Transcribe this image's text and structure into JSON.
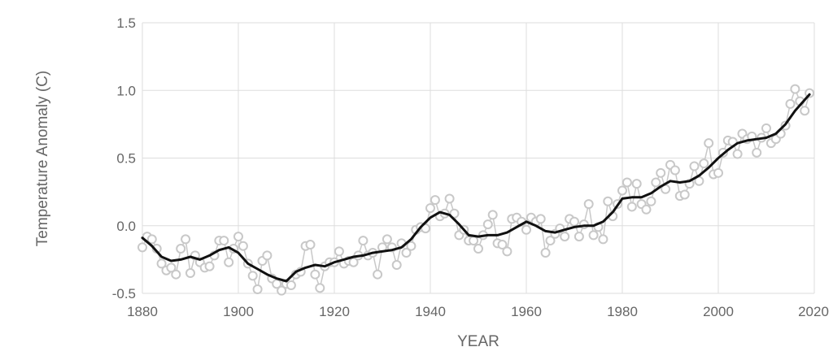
{
  "chart_data": {
    "type": "line",
    "title": "",
    "xlabel": "YEAR",
    "ylabel": "Temperature Anomaly (C)",
    "xlim": [
      1880,
      2020
    ],
    "ylim": [
      -0.5,
      1.5
    ],
    "xticks": [
      1880,
      1900,
      1920,
      1940,
      1960,
      1980,
      2000,
      2020
    ],
    "yticks": [
      -0.5,
      0.0,
      0.5,
      1.0,
      1.5
    ],
    "ytick_labels": [
      "-0.5",
      "0.0",
      "0.5",
      "1.0",
      "1.5"
    ],
    "grid": true,
    "colors": {
      "annual": "#c8c8c8",
      "smoothed": "#111111",
      "grid": "#dddddd"
    },
    "series": [
      {
        "role": "annual mean",
        "x": [
          1880,
          1881,
          1882,
          1883,
          1884,
          1885,
          1886,
          1887,
          1888,
          1889,
          1890,
          1891,
          1892,
          1893,
          1894,
          1895,
          1896,
          1897,
          1898,
          1899,
          1900,
          1901,
          1902,
          1903,
          1904,
          1905,
          1906,
          1907,
          1908,
          1909,
          1910,
          1911,
          1912,
          1913,
          1914,
          1915,
          1916,
          1917,
          1918,
          1919,
          1920,
          1921,
          1922,
          1923,
          1924,
          1925,
          1926,
          1927,
          1928,
          1929,
          1930,
          1931,
          1932,
          1933,
          1934,
          1935,
          1936,
          1937,
          1938,
          1939,
          1940,
          1941,
          1942,
          1943,
          1944,
          1945,
          1946,
          1947,
          1948,
          1949,
          1950,
          1951,
          1952,
          1953,
          1954,
          1955,
          1956,
          1957,
          1958,
          1959,
          1960,
          1961,
          1962,
          1963,
          1964,
          1965,
          1966,
          1967,
          1968,
          1969,
          1970,
          1971,
          1972,
          1973,
          1974,
          1975,
          1976,
          1977,
          1978,
          1979,
          1980,
          1981,
          1982,
          1983,
          1984,
          1985,
          1986,
          1987,
          1988,
          1989,
          1990,
          1991,
          1992,
          1993,
          1994,
          1995,
          1996,
          1997,
          1998,
          1999,
          2000,
          2001,
          2002,
          2003,
          2004,
          2005,
          2006,
          2007,
          2008,
          2009,
          2010,
          2011,
          2012,
          2013,
          2014,
          2015,
          2016,
          2017,
          2018,
          2019
        ],
        "y": [
          -0.16,
          -0.08,
          -0.1,
          -0.17,
          -0.28,
          -0.33,
          -0.31,
          -0.36,
          -0.17,
          -0.1,
          -0.35,
          -0.22,
          -0.27,
          -0.31,
          -0.3,
          -0.22,
          -0.11,
          -0.11,
          -0.27,
          -0.17,
          -0.08,
          -0.15,
          -0.28,
          -0.37,
          -0.47,
          -0.26,
          -0.22,
          -0.39,
          -0.43,
          -0.48,
          -0.43,
          -0.44,
          -0.36,
          -0.34,
          -0.15,
          -0.14,
          -0.36,
          -0.46,
          -0.3,
          -0.27,
          -0.27,
          -0.19,
          -0.28,
          -0.26,
          -0.27,
          -0.22,
          -0.11,
          -0.22,
          -0.2,
          -0.36,
          -0.16,
          -0.1,
          -0.16,
          -0.29,
          -0.13,
          -0.2,
          -0.15,
          -0.03,
          -0.01,
          -0.02,
          0.13,
          0.19,
          0.07,
          0.09,
          0.2,
          0.09,
          -0.07,
          -0.03,
          -0.11,
          -0.11,
          -0.17,
          -0.07,
          0.01,
          0.08,
          -0.13,
          -0.14,
          -0.19,
          0.05,
          0.06,
          0.03,
          -0.03,
          0.06,
          0.03,
          0.05,
          -0.2,
          -0.11,
          -0.06,
          -0.02,
          -0.08,
          0.05,
          0.03,
          -0.08,
          0.01,
          0.16,
          -0.07,
          -0.01,
          -0.1,
          0.18,
          0.07,
          0.16,
          0.26,
          0.32,
          0.14,
          0.31,
          0.16,
          0.12,
          0.18,
          0.32,
          0.39,
          0.27,
          0.45,
          0.41,
          0.22,
          0.23,
          0.31,
          0.44,
          0.33,
          0.46,
          0.61,
          0.38,
          0.39,
          0.54,
          0.63,
          0.62,
          0.53,
          0.68,
          0.64,
          0.66,
          0.54,
          0.65,
          0.72,
          0.61,
          0.64,
          0.68,
          0.74,
          0.9,
          1.01,
          0.92,
          0.85,
          0.98
        ]
      },
      {
        "role": "smoothed",
        "x": [
          1880,
          1882,
          1884,
          1886,
          1888,
          1890,
          1892,
          1894,
          1896,
          1898,
          1900,
          1902,
          1904,
          1906,
          1908,
          1910,
          1912,
          1914,
          1916,
          1918,
          1920,
          1922,
          1924,
          1926,
          1928,
          1930,
          1932,
          1934,
          1936,
          1938,
          1940,
          1942,
          1944,
          1946,
          1948,
          1950,
          1952,
          1954,
          1956,
          1958,
          1960,
          1962,
          1964,
          1966,
          1968,
          1970,
          1972,
          1974,
          1976,
          1978,
          1980,
          1982,
          1984,
          1986,
          1988,
          1990,
          1992,
          1994,
          1996,
          1998,
          2000,
          2002,
          2004,
          2006,
          2008,
          2010,
          2012,
          2014,
          2016,
          2018,
          2019
        ],
        "y": [
          -0.09,
          -0.15,
          -0.23,
          -0.26,
          -0.25,
          -0.23,
          -0.25,
          -0.22,
          -0.18,
          -0.16,
          -0.2,
          -0.28,
          -0.32,
          -0.36,
          -0.39,
          -0.41,
          -0.34,
          -0.31,
          -0.29,
          -0.3,
          -0.27,
          -0.25,
          -0.23,
          -0.22,
          -0.2,
          -0.19,
          -0.18,
          -0.16,
          -0.1,
          -0.01,
          0.06,
          0.1,
          0.08,
          0.01,
          -0.07,
          -0.08,
          -0.07,
          -0.07,
          -0.05,
          -0.01,
          0.03,
          0.0,
          -0.04,
          -0.05,
          -0.03,
          -0.01,
          0.0,
          0.0,
          0.03,
          0.1,
          0.2,
          0.21,
          0.21,
          0.24,
          0.29,
          0.33,
          0.32,
          0.33,
          0.37,
          0.43,
          0.5,
          0.56,
          0.61,
          0.63,
          0.64,
          0.65,
          0.68,
          0.75,
          0.85,
          0.93,
          0.97
        ]
      }
    ]
  }
}
